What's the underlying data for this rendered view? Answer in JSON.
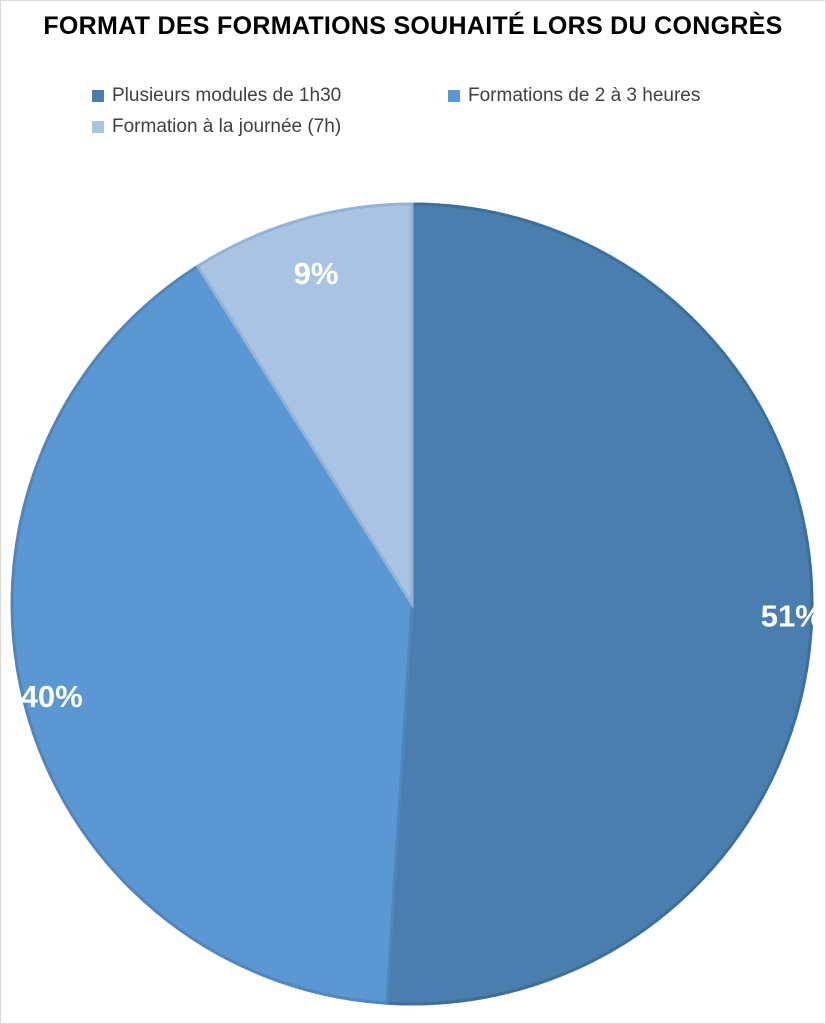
{
  "chart_data": {
    "type": "pie",
    "title": "FORMAT DES FORMATIONS SOUHAITÉ LORS DU CONGRÈS",
    "categories": [
      "Plusieurs modules de 1h30",
      "Formations de 2 à 3 heures",
      "Formation à la journée (7h)"
    ],
    "values": [
      51,
      40,
      9
    ],
    "data_labels": [
      "51%",
      "40%",
      "9%"
    ],
    "colors": [
      "#4a7eae",
      "#5b97d3",
      "#a9c4e3"
    ],
    "legend_position": "top"
  }
}
